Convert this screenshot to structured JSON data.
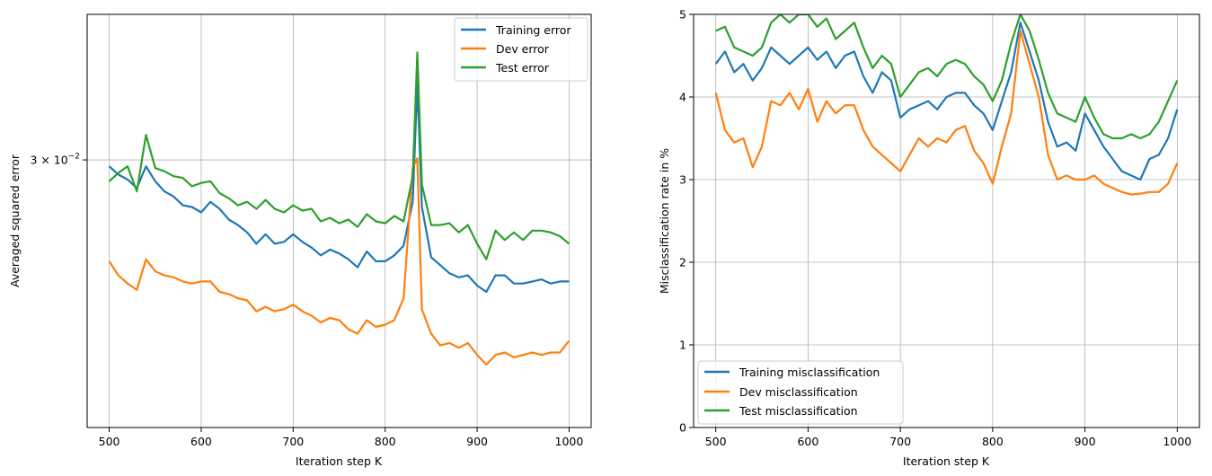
{
  "chart_data": [
    {
      "type": "line",
      "xlabel": "Iteration step K",
      "ylabel": "Averaged squared error",
      "yscale": "log",
      "xlim": [
        476,
        1024
      ],
      "ylim": [
        0.0172,
        0.0406
      ],
      "xticks": [
        500,
        600,
        700,
        800,
        900,
        1000
      ],
      "xtick_labels": [
        "500",
        "600",
        "700",
        "800",
        "900",
        "1000"
      ],
      "ytick_label": "3 × 10",
      "ytick_exp": "−2",
      "ytick_value": 0.03,
      "grid": true,
      "legend_position": "top-right",
      "series": [
        {
          "name": "Training error",
          "color": "#1f77b4",
          "x": [
            500,
            510,
            520,
            530,
            540,
            550,
            560,
            570,
            580,
            590,
            600,
            610,
            620,
            630,
            640,
            650,
            660,
            670,
            680,
            690,
            700,
            710,
            720,
            730,
            740,
            750,
            760,
            770,
            780,
            790,
            800,
            810,
            820,
            830,
            835,
            840,
            850,
            860,
            870,
            880,
            890,
            900,
            910,
            920,
            930,
            940,
            950,
            960,
            970,
            980,
            990,
            1000
          ],
          "y": [
            0.0296,
            0.0291,
            0.0288,
            0.0283,
            0.0296,
            0.0287,
            0.0281,
            0.0278,
            0.0273,
            0.0272,
            0.0269,
            0.0275,
            0.0271,
            0.0265,
            0.0262,
            0.0258,
            0.0252,
            0.0257,
            0.0252,
            0.0253,
            0.0257,
            0.0253,
            0.025,
            0.0246,
            0.0249,
            0.0247,
            0.0244,
            0.024,
            0.0248,
            0.0243,
            0.0243,
            0.0246,
            0.0251,
            0.0275,
            0.0352,
            0.0272,
            0.0245,
            0.0241,
            0.0237,
            0.0235,
            0.0236,
            0.0231,
            0.0228,
            0.0236,
            0.0236,
            0.0232,
            0.0232,
            0.0233,
            0.0234,
            0.0232,
            0.0233,
            0.0233
          ]
        },
        {
          "name": "Dev error",
          "color": "#ff7f0e",
          "x": [
            500,
            510,
            520,
            530,
            540,
            550,
            560,
            570,
            580,
            590,
            600,
            610,
            620,
            630,
            640,
            650,
            660,
            670,
            680,
            690,
            700,
            710,
            720,
            730,
            740,
            750,
            760,
            770,
            780,
            790,
            800,
            810,
            820,
            830,
            835,
            840,
            850,
            860,
            870,
            880,
            890,
            900,
            910,
            920,
            930,
            940,
            950,
            960,
            970,
            980,
            990,
            1000
          ],
          "y": [
            0.0243,
            0.0236,
            0.0232,
            0.0229,
            0.0244,
            0.0238,
            0.0236,
            0.0235,
            0.0233,
            0.0232,
            0.0233,
            0.0233,
            0.0228,
            0.0227,
            0.0225,
            0.0224,
            0.0219,
            0.0221,
            0.0219,
            0.022,
            0.0222,
            0.0219,
            0.0217,
            0.0214,
            0.0216,
            0.0215,
            0.0211,
            0.0209,
            0.0215,
            0.0212,
            0.0213,
            0.0215,
            0.0225,
            0.0295,
            0.0301,
            0.022,
            0.0209,
            0.0204,
            0.0205,
            0.0203,
            0.0205,
            0.02,
            0.0196,
            0.02,
            0.0201,
            0.0199,
            0.02,
            0.0201,
            0.02,
            0.0201,
            0.0201,
            0.0206
          ]
        },
        {
          "name": "Test error",
          "color": "#2ca02c",
          "x": [
            500,
            510,
            520,
            530,
            540,
            550,
            560,
            570,
            580,
            590,
            600,
            610,
            620,
            630,
            640,
            650,
            660,
            670,
            680,
            690,
            700,
            710,
            720,
            730,
            740,
            750,
            760,
            770,
            780,
            790,
            800,
            810,
            820,
            830,
            835,
            840,
            850,
            860,
            870,
            880,
            890,
            900,
            910,
            920,
            930,
            940,
            950,
            960,
            970,
            980,
            990,
            1000
          ],
          "y": [
            0.0287,
            0.0292,
            0.0296,
            0.0281,
            0.0316,
            0.0295,
            0.0293,
            0.029,
            0.0289,
            0.0284,
            0.0286,
            0.0287,
            0.028,
            0.0277,
            0.0273,
            0.0275,
            0.0271,
            0.0276,
            0.0271,
            0.0269,
            0.0273,
            0.027,
            0.0271,
            0.0264,
            0.0266,
            0.0263,
            0.0265,
            0.0261,
            0.0268,
            0.0264,
            0.0263,
            0.0267,
            0.0264,
            0.029,
            0.0375,
            0.0285,
            0.0262,
            0.0262,
            0.0263,
            0.0258,
            0.0262,
            0.0252,
            0.0244,
            0.0259,
            0.0254,
            0.0258,
            0.0254,
            0.0259,
            0.0259,
            0.0258,
            0.0256,
            0.0252
          ]
        }
      ]
    },
    {
      "type": "line",
      "xlabel": "Iteration step K",
      "ylabel": "Misclassification rate in %",
      "xlim": [
        476,
        1024
      ],
      "ylim": [
        0,
        5
      ],
      "xticks": [
        500,
        600,
        700,
        800,
        900,
        1000
      ],
      "xtick_labels": [
        "500",
        "600",
        "700",
        "800",
        "900",
        "1000"
      ],
      "yticks": [
        0,
        1,
        2,
        3,
        4,
        5
      ],
      "ytick_labels": [
        "0",
        "1",
        "2",
        "3",
        "4",
        "5"
      ],
      "grid": true,
      "legend_position": "bottom-left",
      "series": [
        {
          "name": "Training misclassification",
          "color": "#1f77b4",
          "x": [
            500,
            510,
            520,
            530,
            540,
            550,
            560,
            570,
            580,
            590,
            600,
            610,
            620,
            630,
            640,
            650,
            660,
            670,
            680,
            690,
            700,
            710,
            720,
            730,
            740,
            750,
            760,
            770,
            780,
            790,
            800,
            810,
            820,
            830,
            840,
            850,
            860,
            870,
            880,
            890,
            900,
            910,
            920,
            930,
            940,
            950,
            960,
            970,
            980,
            990,
            1000
          ],
          "y": [
            4.4,
            4.55,
            4.3,
            4.4,
            4.2,
            4.35,
            4.6,
            4.5,
            4.4,
            4.5,
            4.6,
            4.45,
            4.55,
            4.35,
            4.5,
            4.55,
            4.25,
            4.05,
            4.3,
            4.2,
            3.75,
            3.85,
            3.9,
            3.95,
            3.85,
            4.0,
            4.05,
            4.05,
            3.9,
            3.8,
            3.6,
            3.95,
            4.3,
            4.9,
            4.55,
            4.2,
            3.7,
            3.4,
            3.45,
            3.35,
            3.8,
            3.6,
            3.4,
            3.25,
            3.1,
            3.05,
            3.0,
            3.25,
            3.3,
            3.5,
            3.85
          ]
        },
        {
          "name": "Dev misclassification",
          "color": "#ff7f0e",
          "x": [
            500,
            510,
            520,
            530,
            540,
            550,
            560,
            570,
            580,
            590,
            600,
            610,
            620,
            630,
            640,
            650,
            660,
            670,
            680,
            690,
            700,
            710,
            720,
            730,
            740,
            750,
            760,
            770,
            780,
            790,
            800,
            810,
            820,
            830,
            840,
            850,
            860,
            870,
            880,
            890,
            900,
            910,
            920,
            930,
            940,
            950,
            960,
            970,
            980,
            990,
            1000
          ],
          "y": [
            4.05,
            3.6,
            3.45,
            3.5,
            3.15,
            3.4,
            3.95,
            3.9,
            4.05,
            3.85,
            4.1,
            3.7,
            3.95,
            3.8,
            3.9,
            3.9,
            3.6,
            3.4,
            3.3,
            3.2,
            3.1,
            3.3,
            3.5,
            3.4,
            3.5,
            3.45,
            3.6,
            3.65,
            3.35,
            3.2,
            2.95,
            3.4,
            3.8,
            4.8,
            4.4,
            4.0,
            3.3,
            3.0,
            3.05,
            3.0,
            3.0,
            3.05,
            2.95,
            2.9,
            2.85,
            2.82,
            2.83,
            2.85,
            2.85,
            2.95,
            3.2
          ]
        },
        {
          "name": "Test misclassification",
          "color": "#2ca02c",
          "x": [
            500,
            510,
            520,
            530,
            540,
            550,
            560,
            570,
            580,
            590,
            600,
            610,
            620,
            630,
            640,
            650,
            660,
            670,
            680,
            690,
            700,
            710,
            720,
            730,
            740,
            750,
            760,
            770,
            780,
            790,
            800,
            810,
            820,
            830,
            840,
            850,
            860,
            870,
            880,
            890,
            900,
            910,
            920,
            930,
            940,
            950,
            960,
            970,
            980,
            990,
            1000
          ],
          "y": [
            4.8,
            4.85,
            4.6,
            4.55,
            4.5,
            4.6,
            4.9,
            5.0,
            4.9,
            5.0,
            5.0,
            4.85,
            4.95,
            4.7,
            4.8,
            4.9,
            4.6,
            4.35,
            4.5,
            4.4,
            4.0,
            4.15,
            4.3,
            4.35,
            4.25,
            4.4,
            4.45,
            4.4,
            4.25,
            4.15,
            3.95,
            4.2,
            4.65,
            5.0,
            4.8,
            4.45,
            4.05,
            3.8,
            3.75,
            3.7,
            4.0,
            3.75,
            3.55,
            3.5,
            3.5,
            3.55,
            3.5,
            3.55,
            3.7,
            3.95,
            4.2
          ]
        }
      ]
    }
  ]
}
